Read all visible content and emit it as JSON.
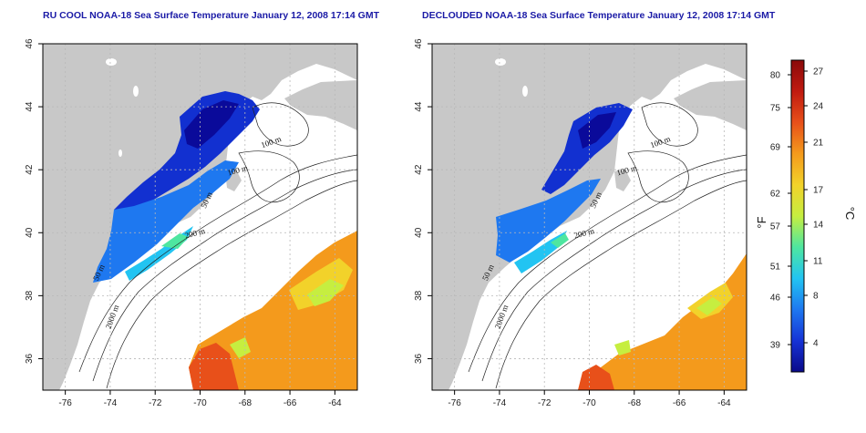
{
  "titles": {
    "left": "RU COOL NOAA-18 Sea Surface Temperature January 12, 2008 17:14 GMT",
    "right": "DECLOUDED NOAA-18 Sea Surface Temperature January 12, 2008 17:14 GMT"
  },
  "axes": {
    "lon_ticks": [
      -76,
      -74,
      -72,
      -70,
      -68,
      -66,
      -64
    ],
    "lat_ticks": [
      36,
      38,
      40,
      42,
      44,
      46
    ],
    "lon_range": [
      -77,
      -63
    ],
    "lat_range": [
      35,
      46
    ]
  },
  "contour_labels": [
    {
      "text": "100 m",
      "lon": -66.8,
      "lat": 42.8,
      "rot": -20
    },
    {
      "text": "100 m",
      "lon": -68.3,
      "lat": 41.9,
      "rot": -15
    },
    {
      "text": "50 m",
      "lon": -69.6,
      "lat": 41.0,
      "rot": -65
    },
    {
      "text": "200 m",
      "lon": -70.2,
      "lat": 39.9,
      "rot": -15
    },
    {
      "text": "50 m",
      "lon": -74.4,
      "lat": 38.7,
      "rot": -65
    },
    {
      "text": "2000 m",
      "lon": -73.8,
      "lat": 37.3,
      "rot": -70
    }
  ],
  "colorbar": {
    "fahrenheit_label": "°F",
    "celsius_label": "°C",
    "fahrenheit_ticks": [
      "80",
      "75",
      "69",
      "62",
      "57",
      "51",
      "46",
      "39"
    ],
    "celsius_ticks": [
      "27",
      "24",
      "21",
      "17",
      "14",
      "11",
      "8",
      "4"
    ],
    "colors": [
      "#0a0a8a",
      "#1633d6",
      "#1e78f0",
      "#22c4f2",
      "#4ee6a0",
      "#c6ee40",
      "#f2d22a",
      "#f49a1c",
      "#e8501a",
      "#c01a10",
      "#8a0a0a"
    ]
  },
  "colors": {
    "land": "#c8c8c8",
    "water": "#ffffff",
    "frame": "#000000",
    "grid": "#b8b8b8"
  }
}
